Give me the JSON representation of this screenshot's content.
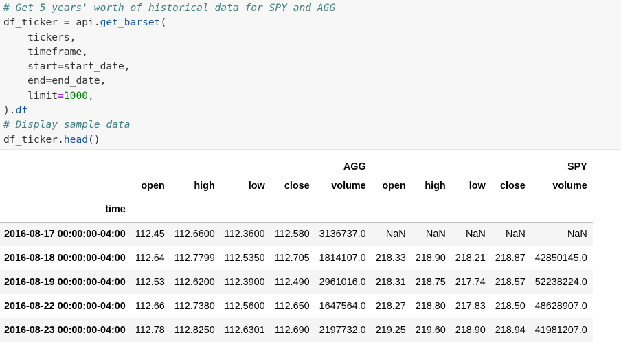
{
  "code": {
    "lines": [
      [
        {
          "t": "# Get 5 years' worth of historical data for SPY and AGG",
          "c": "comment"
        }
      ],
      [
        {
          "t": "df_ticker ",
          "c": "plain"
        },
        {
          "t": "=",
          "c": "op"
        },
        {
          "t": " api.",
          "c": "plain"
        },
        {
          "t": "get_barset",
          "c": "func"
        },
        {
          "t": "(",
          "c": "plain"
        }
      ],
      [
        {
          "t": "    tickers,",
          "c": "plain"
        }
      ],
      [
        {
          "t": "    timeframe,",
          "c": "plain"
        }
      ],
      [
        {
          "t": "    start",
          "c": "plain"
        },
        {
          "t": "=",
          "c": "op"
        },
        {
          "t": "start_date,",
          "c": "plain"
        }
      ],
      [
        {
          "t": "    end",
          "c": "plain"
        },
        {
          "t": "=",
          "c": "op"
        },
        {
          "t": "end_date,",
          "c": "plain"
        }
      ],
      [
        {
          "t": "    limit",
          "c": "plain"
        },
        {
          "t": "=",
          "c": "op"
        },
        {
          "t": "1000",
          "c": "num"
        },
        {
          "t": ",",
          "c": "plain"
        }
      ],
      [
        {
          "t": ").",
          "c": "plain"
        },
        {
          "t": "df",
          "c": "func"
        }
      ],
      [
        {
          "t": "# Display sample data",
          "c": "comment"
        }
      ],
      [
        {
          "t": "df_ticker.",
          "c": "plain"
        },
        {
          "t": "head",
          "c": "func"
        },
        {
          "t": "()",
          "c": "plain"
        }
      ]
    ]
  },
  "table": {
    "group_row": [
      "",
      "",
      "",
      "",
      "",
      "AGG",
      "",
      "",
      "",
      "",
      "SPY"
    ],
    "column_row": [
      "",
      "open",
      "high",
      "low",
      "close",
      "volume",
      "open",
      "high",
      "low",
      "close",
      "volume"
    ],
    "index_name": "time",
    "rows": [
      [
        "2016-08-17 00:00:00-04:00",
        "112.45",
        "112.6600",
        "112.3600",
        "112.580",
        "3136737.0",
        "NaN",
        "NaN",
        "NaN",
        "NaN",
        "NaN"
      ],
      [
        "2016-08-18 00:00:00-04:00",
        "112.64",
        "112.7799",
        "112.5350",
        "112.705",
        "1814107.0",
        "218.33",
        "218.90",
        "218.21",
        "218.87",
        "42850145.0"
      ],
      [
        "2016-08-19 00:00:00-04:00",
        "112.53",
        "112.6200",
        "112.3900",
        "112.490",
        "2961016.0",
        "218.31",
        "218.75",
        "217.74",
        "218.57",
        "52238224.0"
      ],
      [
        "2016-08-22 00:00:00-04:00",
        "112.66",
        "112.7380",
        "112.5600",
        "112.650",
        "1647564.0",
        "218.27",
        "218.80",
        "217.83",
        "218.50",
        "48628907.0"
      ],
      [
        "2016-08-23 00:00:00-04:00",
        "112.78",
        "112.8250",
        "112.6301",
        "112.690",
        "2197732.0",
        "219.25",
        "219.60",
        "218.90",
        "218.94",
        "41981207.0"
      ]
    ]
  }
}
